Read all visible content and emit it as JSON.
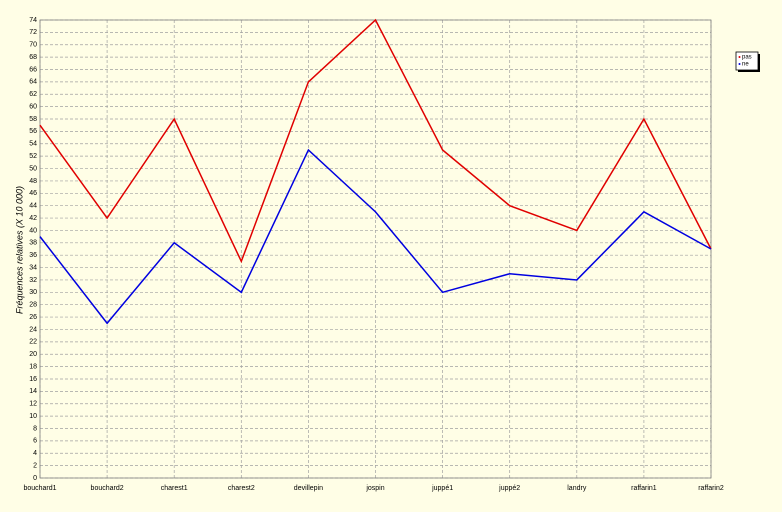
{
  "chart_data": {
    "type": "line",
    "y_label": "Fréquences relatives (X 10 000)",
    "categories": [
      "bouchard1",
      "bouchard2",
      "charest1",
      "charest2",
      "devillepin",
      "jospin",
      "juppé1",
      "juppé2",
      "landry",
      "raffarin1",
      "raffarin2"
    ],
    "series": [
      {
        "name": "pas",
        "color": "#e00000",
        "values": [
          57,
          42,
          58,
          35,
          64,
          74,
          53,
          44,
          40,
          58,
          37
        ]
      },
      {
        "name": "ne",
        "color": "#0000e0",
        "values": [
          39,
          25,
          38,
          30,
          53,
          43,
          30,
          33,
          32,
          43,
          37
        ]
      }
    ],
    "ylim": [
      0,
      74
    ],
    "yticks": [
      0,
      2,
      4,
      6,
      8,
      10,
      12,
      14,
      16,
      18,
      20,
      22,
      24,
      26,
      28,
      30,
      32,
      34,
      36,
      38,
      40,
      42,
      44,
      46,
      48,
      50,
      52,
      54,
      56,
      58,
      60,
      62,
      64,
      66,
      68,
      70,
      72,
      74
    ],
    "grid": true,
    "legend": "right"
  }
}
